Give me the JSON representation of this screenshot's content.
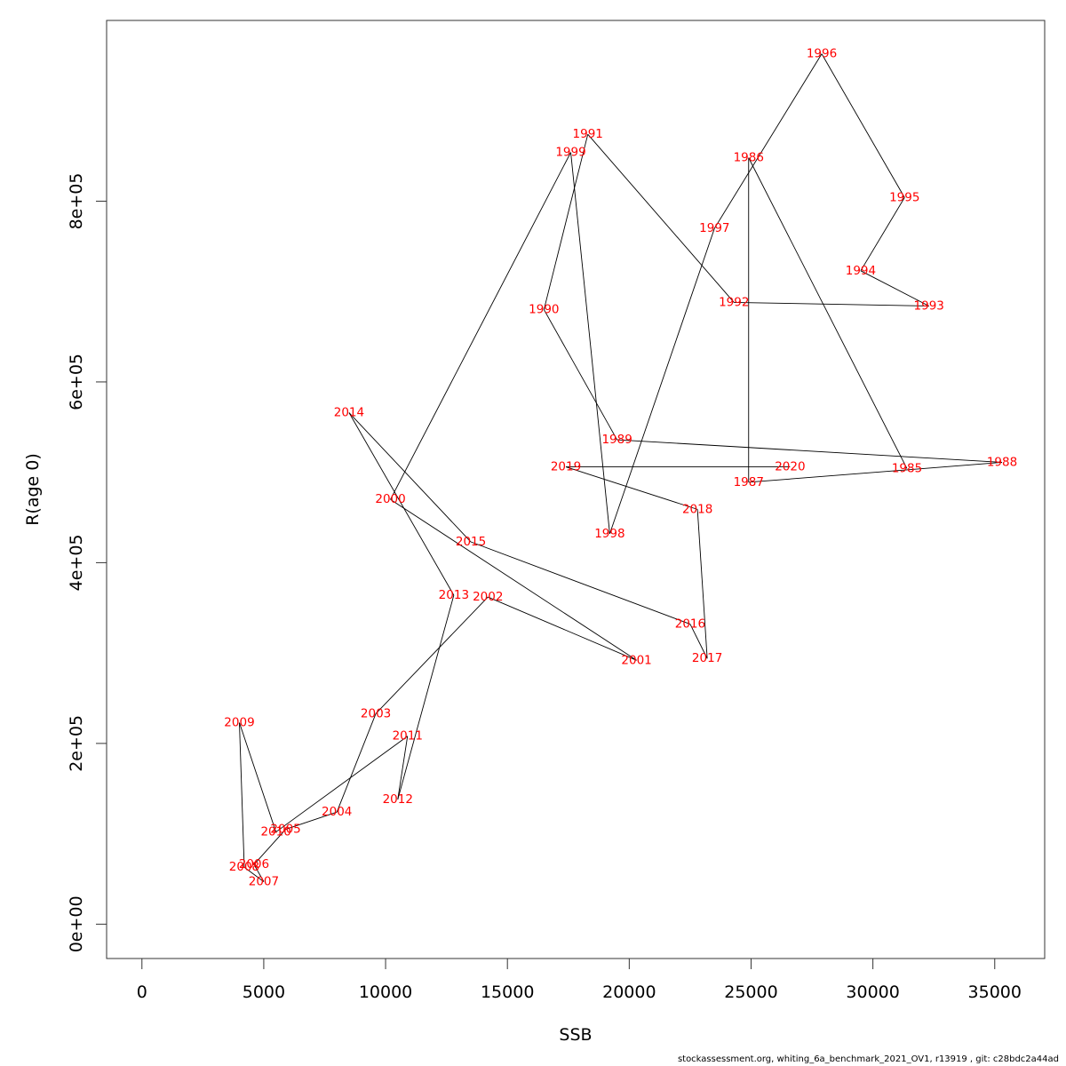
{
  "chart_data": {
    "type": "line",
    "xlabel": "SSB",
    "ylabel": "R(age 0)",
    "xlim": [
      -1450,
      37050
    ],
    "ylim": [
      -38000,
      1000000
    ],
    "xticks": [
      0,
      5000,
      10000,
      15000,
      20000,
      25000,
      30000,
      35000
    ],
    "xtick_labels": [
      "0",
      "5000",
      "10000",
      "15000",
      "20000",
      "25000",
      "30000",
      "35000"
    ],
    "yticks": [
      0,
      200000,
      400000,
      600000,
      800000
    ],
    "ytick_labels": [
      "0e+00",
      "2e+05",
      "4e+05",
      "6e+05",
      "8e+05"
    ],
    "line_color": "#000000",
    "label_color": "#ff0000",
    "points": [
      {
        "year": "1985",
        "x": 31400,
        "y": 504000
      },
      {
        "year": "1986",
        "x": 24900,
        "y": 848000
      },
      {
        "year": "1987",
        "x": 24900,
        "y": 489000
      },
      {
        "year": "1988",
        "x": 35300,
        "y": 511000
      },
      {
        "year": "1989",
        "x": 19500,
        "y": 536000
      },
      {
        "year": "1990",
        "x": 16500,
        "y": 680000
      },
      {
        "year": "1991",
        "x": 18300,
        "y": 874000
      },
      {
        "year": "1992",
        "x": 24300,
        "y": 688000
      },
      {
        "year": "1993",
        "x": 32300,
        "y": 684000
      },
      {
        "year": "1994",
        "x": 29500,
        "y": 723000
      },
      {
        "year": "1995",
        "x": 31300,
        "y": 804000
      },
      {
        "year": "1996",
        "x": 27900,
        "y": 963000
      },
      {
        "year": "1997",
        "x": 23500,
        "y": 770000
      },
      {
        "year": "1998",
        "x": 19200,
        "y": 432000
      },
      {
        "year": "1999",
        "x": 17600,
        "y": 854000
      },
      {
        "year": "2000",
        "x": 10200,
        "y": 470000
      },
      {
        "year": "2001",
        "x": 20300,
        "y": 292000
      },
      {
        "year": "2002",
        "x": 14200,
        "y": 362000
      },
      {
        "year": "2003",
        "x": 9600,
        "y": 233000
      },
      {
        "year": "2004",
        "x": 8000,
        "y": 124000
      },
      {
        "year": "2005",
        "x": 5900,
        "y": 105000
      },
      {
        "year": "2006",
        "x": 4600,
        "y": 66000
      },
      {
        "year": "2007",
        "x": 5000,
        "y": 47000
      },
      {
        "year": "2008",
        "x": 4200,
        "y": 63000
      },
      {
        "year": "2009",
        "x": 4000,
        "y": 223000
      },
      {
        "year": "2010",
        "x": 5500,
        "y": 102000
      },
      {
        "year": "2011",
        "x": 10900,
        "y": 208000
      },
      {
        "year": "2012",
        "x": 10500,
        "y": 138000
      },
      {
        "year": "2013",
        "x": 12800,
        "y": 364000
      },
      {
        "year": "2014",
        "x": 8500,
        "y": 566000
      },
      {
        "year": "2015",
        "x": 13500,
        "y": 423000
      },
      {
        "year": "2016",
        "x": 22500,
        "y": 332000
      },
      {
        "year": "2017",
        "x": 23200,
        "y": 294000
      },
      {
        "year": "2018",
        "x": 22800,
        "y": 459000
      },
      {
        "year": "2019",
        "x": 17400,
        "y": 506000
      },
      {
        "year": "2020",
        "x": 26600,
        "y": 506000
      }
    ]
  },
  "footer": "stockassessment.org, whiting_6a_benchmark_2021_OV1, r13919 , git: c28bdc2a44ad"
}
